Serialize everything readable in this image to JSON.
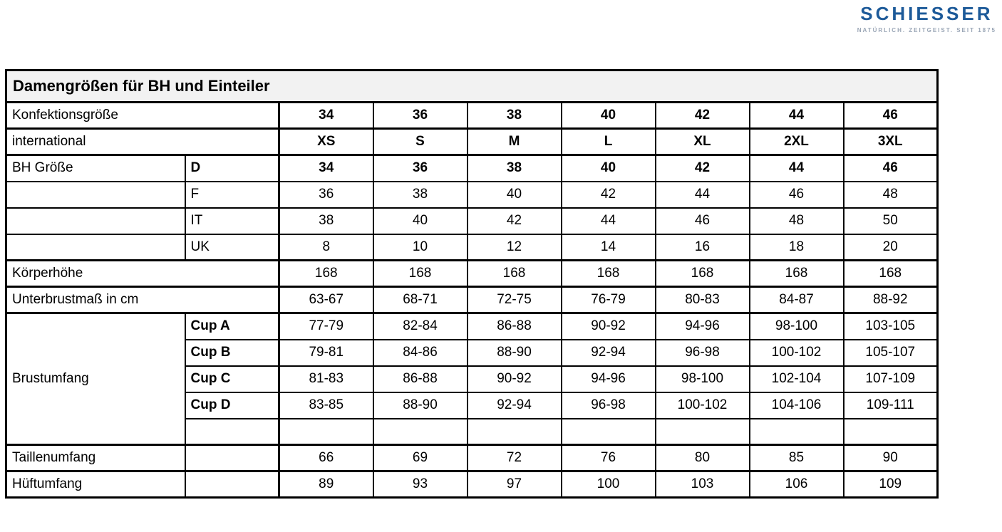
{
  "brand": {
    "name": "SCHIESSER",
    "tagline": "NATÜRLICH. ZEITGEIST. SEIT 1875",
    "color": "#1D5A99",
    "tagline_color": "#9AA6B6"
  },
  "table": {
    "title": "Damengrößen für BH und Einteiler",
    "title_bg": "#F2F2F2",
    "border_color": "#000000",
    "size_columns": [
      "34",
      "36",
      "38",
      "40",
      "42",
      "44",
      "46"
    ],
    "rows": [
      {
        "label": "Konfektionsgröße",
        "label_colspan": 2,
        "values": [
          "34",
          "36",
          "38",
          "40",
          "42",
          "44",
          "46"
        ],
        "values_bold": true,
        "section_start": true
      },
      {
        "label": "international",
        "label_colspan": 2,
        "values": [
          "XS",
          "S",
          "M",
          "L",
          "XL",
          "2XL",
          "3XL"
        ],
        "values_bold": true,
        "section_start": true
      },
      {
        "label": "BH Größe",
        "sublabel": "D",
        "sublabel_bold": true,
        "values": [
          "34",
          "36",
          "38",
          "40",
          "42",
          "44",
          "46"
        ],
        "values_bold": true,
        "section_start": true
      },
      {
        "label": "",
        "sublabel": "F",
        "values": [
          "36",
          "38",
          "40",
          "42",
          "44",
          "46",
          "48"
        ]
      },
      {
        "label": "",
        "sublabel": "IT",
        "values": [
          "38",
          "40",
          "42",
          "44",
          "46",
          "48",
          "50"
        ]
      },
      {
        "label": "",
        "sublabel": "UK",
        "values": [
          "8",
          "10",
          "12",
          "14",
          "16",
          "18",
          "20"
        ]
      },
      {
        "label": "Körperhöhe",
        "label_colspan": 2,
        "values": [
          "168",
          "168",
          "168",
          "168",
          "168",
          "168",
          "168"
        ],
        "section_start": true
      },
      {
        "label": "Unterbrustmaß in cm",
        "label_colspan": 2,
        "values": [
          "63-67",
          "68-71",
          "72-75",
          "76-79",
          "80-83",
          "84-87",
          "88-92"
        ],
        "section_start": true
      },
      {
        "label": "Brustumfang",
        "label_rowspan": 5,
        "sublabel": "Cup A",
        "sublabel_bold": true,
        "values": [
          "77-79",
          "82-84",
          "86-88",
          "90-92",
          "94-96",
          "98-100",
          "103-105"
        ],
        "section_start": true
      },
      {
        "sublabel": "Cup B",
        "sublabel_bold": true,
        "values": [
          "79-81",
          "84-86",
          "88-90",
          "92-94",
          "96-98",
          "100-102",
          "105-107"
        ]
      },
      {
        "sublabel": "Cup C",
        "sublabel_bold": true,
        "values": [
          "81-83",
          "86-88",
          "90-92",
          "94-96",
          "98-100",
          "102-104",
          "107-109"
        ]
      },
      {
        "sublabel": "Cup D",
        "sublabel_bold": true,
        "values": [
          "83-85",
          "88-90",
          "92-94",
          "96-98",
          "100-102",
          "104-106",
          "109-111"
        ]
      },
      {
        "sublabel": "",
        "values": [
          "",
          "",
          "",
          "",
          "",
          "",
          ""
        ]
      },
      {
        "label": "Taillenumfang",
        "sublabel": "",
        "values": [
          "66",
          "69",
          "72",
          "76",
          "80",
          "85",
          "90"
        ],
        "section_start": true
      },
      {
        "label": "Hüftumfang",
        "sublabel": "",
        "values": [
          "89",
          "93",
          "97",
          "100",
          "103",
          "106",
          "109"
        ],
        "section_start": true
      }
    ]
  }
}
